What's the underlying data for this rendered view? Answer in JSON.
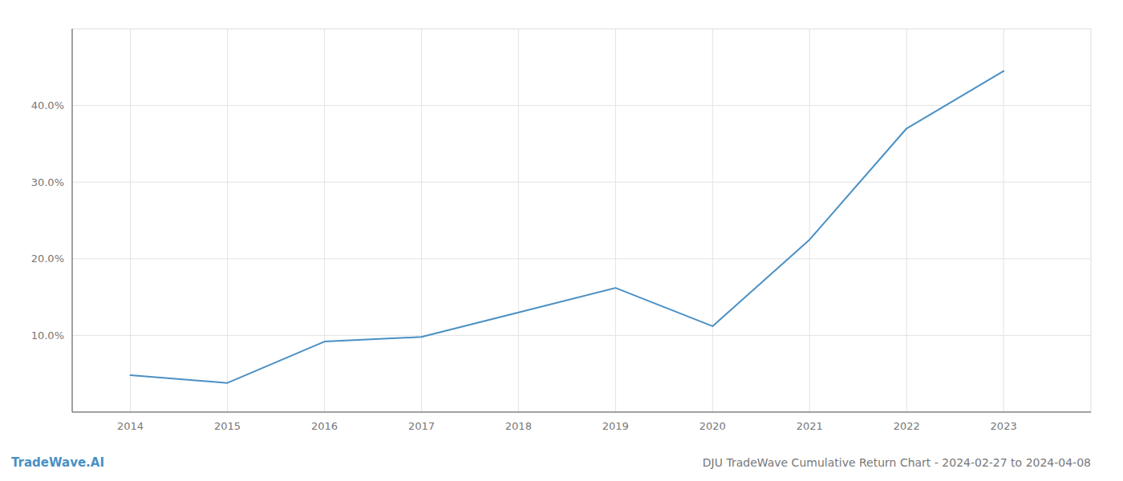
{
  "chart_data": {
    "type": "line",
    "title": "DJU TradeWave Cumulative Return Chart - 2024-02-27 to 2024-04-08",
    "annotations": [
      "TradeWave.AI"
    ],
    "x": [
      2014,
      2015,
      2016,
      2017,
      2018,
      2019,
      2020,
      2021,
      2022,
      2023
    ],
    "values": [
      4.8,
      3.8,
      9.2,
      9.8,
      13.0,
      16.2,
      11.2,
      22.5,
      37.0,
      44.5
    ],
    "color": "#4a90c4",
    "xlim": [
      2013.4,
      2023.9
    ],
    "ylim": [
      0,
      50
    ],
    "xticks": [
      2014,
      2015,
      2016,
      2017,
      2018,
      2019,
      2020,
      2021,
      2022,
      2023
    ],
    "yticks": [
      {
        "value": 10.0,
        "label": "10.0%"
      },
      {
        "value": 20.0,
        "label": "20.0%"
      },
      {
        "value": 30.0,
        "label": "30.0%"
      },
      {
        "value": 40.0,
        "label": "40.0%"
      }
    ],
    "grid": true
  }
}
